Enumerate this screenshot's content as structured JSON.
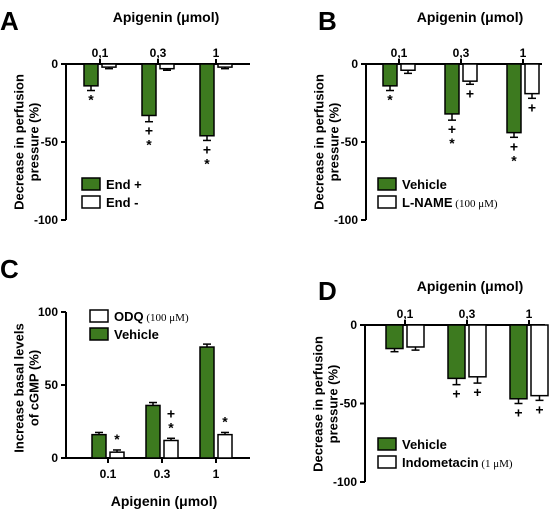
{
  "colors": {
    "green": "#3d7a1f",
    "white": "#ffffff",
    "axis": "#000000"
  },
  "chart_data": [
    {
      "panel": "A",
      "type": "bar",
      "title": "Apigenin (μmol)",
      "ylabel": "Decrease in perfusion pressure (%)",
      "categories": [
        "0,1",
        "0,3",
        "1"
      ],
      "ylim": [
        -100,
        0
      ],
      "yticks": [
        "0",
        "-50",
        "-100"
      ],
      "series": [
        {
          "name": "End +",
          "color": "green",
          "values": [
            -14,
            -33,
            -46
          ],
          "errors": [
            3,
            4,
            3
          ]
        },
        {
          "name": "End -",
          "color": "white",
          "values": [
            -2,
            -3,
            -2
          ],
          "errors": [
            1,
            1,
            1
          ]
        }
      ],
      "annotations": [
        {
          "category": 0,
          "series": 0,
          "text": "*"
        },
        {
          "category": 1,
          "series": 0,
          "text": "+"
        },
        {
          "category": 1,
          "series": 0,
          "text": "*"
        },
        {
          "category": 2,
          "series": 0,
          "text": "+"
        },
        {
          "category": 2,
          "series": 0,
          "text": "*"
        }
      ],
      "legend": [
        {
          "label": "End +",
          "suffix": "",
          "color": "green"
        },
        {
          "label": "End -",
          "suffix": "",
          "color": "white"
        }
      ],
      "legend_position": "bottom-left"
    },
    {
      "panel": "B",
      "type": "bar",
      "title": "Apigenin (μmol)",
      "ylabel": "Decrease in perfusion pressure (%)",
      "categories": [
        "0,1",
        "0,3",
        "1"
      ],
      "ylim": [
        -100,
        0
      ],
      "yticks": [
        "0",
        "-50",
        "-100"
      ],
      "series": [
        {
          "name": "Vehicle",
          "color": "green",
          "values": [
            -14,
            -32,
            -44
          ],
          "errors": [
            3,
            4,
            3
          ]
        },
        {
          "name": "L-NAME",
          "color": "white",
          "values": [
            -4,
            -11,
            -19
          ],
          "errors": [
            2,
            2,
            3
          ]
        }
      ],
      "annotations": [
        {
          "category": 0,
          "series": 0,
          "text": "*"
        },
        {
          "category": 1,
          "series": 0,
          "text": "+"
        },
        {
          "category": 1,
          "series": 0,
          "text": "*"
        },
        {
          "category": 2,
          "series": 0,
          "text": "+"
        },
        {
          "category": 2,
          "series": 0,
          "text": "*"
        },
        {
          "category": 1,
          "series": 1,
          "text": "+"
        },
        {
          "category": 2,
          "series": 1,
          "text": "+"
        }
      ],
      "legend": [
        {
          "label": "Vehicle",
          "suffix": "",
          "color": "green"
        },
        {
          "label": "L-NAME",
          "suffix": " (100 μM)",
          "color": "white"
        }
      ],
      "legend_position": "bottom-left"
    },
    {
      "panel": "C",
      "type": "bar",
      "xlabel": "Apigenin (μmol)",
      "ylabel": "Increase basal levels of cGMP (%)",
      "categories": [
        "0.1",
        "0.3",
        "1"
      ],
      "ylim": [
        0,
        100
      ],
      "yticks": [
        "0",
        "50",
        "100"
      ],
      "series": [
        {
          "name": "Vehicle",
          "color": "green",
          "values": [
            16,
            36,
            76
          ],
          "errors": [
            1.5,
            2,
            2
          ]
        },
        {
          "name": "ODQ",
          "color": "white",
          "values": [
            4,
            12,
            16
          ],
          "errors": [
            1.5,
            1.5,
            1.5
          ]
        }
      ],
      "annotations": [
        {
          "category": 0,
          "series": 1,
          "text": "*"
        },
        {
          "category": 1,
          "series": 1,
          "text": "+"
        },
        {
          "category": 1,
          "series": 1,
          "text": "*"
        },
        {
          "category": 2,
          "series": 1,
          "text": "*"
        }
      ],
      "legend": [
        {
          "label": "ODQ",
          "suffix": " (100 μM)",
          "color": "white"
        },
        {
          "label": "Vehicle",
          "suffix": "",
          "color": "green"
        }
      ],
      "legend_position": "top-left"
    },
    {
      "panel": "D",
      "type": "bar",
      "title": "Apigenin (μmol)",
      "ylabel": "Decrease in perfusion pressure (%)",
      "categories": [
        "0,1",
        "0,3",
        "1"
      ],
      "ylim": [
        -100,
        0
      ],
      "yticks": [
        "0",
        "-50",
        "-100"
      ],
      "series": [
        {
          "name": "Vehicle",
          "color": "green",
          "values": [
            -15,
            -34,
            -47
          ],
          "errors": [
            2,
            4,
            3
          ]
        },
        {
          "name": "Indometacin",
          "color": "white",
          "values": [
            -14,
            -33,
            -45
          ],
          "errors": [
            2,
            4,
            3
          ]
        }
      ],
      "annotations": [
        {
          "category": 1,
          "series": 0,
          "text": "+"
        },
        {
          "category": 1,
          "series": 1,
          "text": "+"
        },
        {
          "category": 2,
          "series": 0,
          "text": "+"
        },
        {
          "category": 2,
          "series": 1,
          "text": "+"
        }
      ],
      "legend": [
        {
          "label": "Vehicle",
          "suffix": "",
          "color": "green"
        },
        {
          "label": "Indometacin",
          "suffix": " (1 μM)",
          "color": "white"
        }
      ],
      "legend_position": "bottom-left"
    }
  ]
}
